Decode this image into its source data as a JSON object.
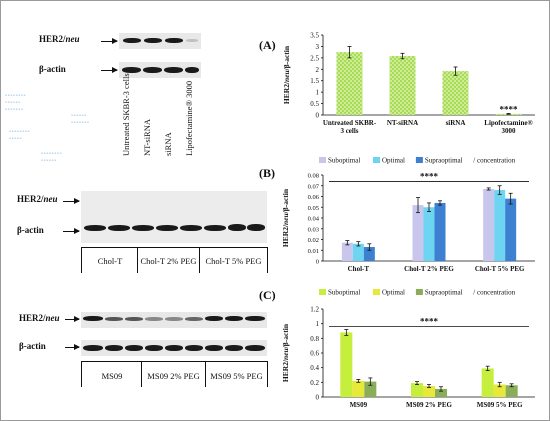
{
  "panel_labels": {
    "a": "(A)",
    "b": "(B)",
    "c": "(C)"
  },
  "blot_labels": {
    "her2": "HER2/neu",
    "actin": "β-actin"
  },
  "panel_a": {
    "lanes": [
      "Untreated SKBR-3 cells",
      "NT-siRNA",
      "siRNA",
      "Lipofectamine® 3000"
    ]
  },
  "panel_b": {
    "groups": [
      "Chol-T",
      "Chol-T 2% PEG",
      "Chol-T 5% PEG"
    ],
    "legend": [
      "Suboptimal",
      "Optimal",
      "Supraoptimal",
      "/ concentration"
    ]
  },
  "panel_c": {
    "groups": [
      "MS09",
      "MS09 2% PEG",
      "MS09 5% PEG"
    ],
    "legend": [
      "Suboptimal",
      "Optimal",
      "Supraoptimal",
      "/ concentration"
    ]
  },
  "colors": {
    "a_fill": "#9bd84a",
    "a_hatch": "#d9f0a0",
    "b_sub": "#c9c6ee",
    "b_opt": "#6dd4f2",
    "b_sup": "#3d7fd0",
    "c_sub": "#c6ee3c",
    "c_opt": "#e6e83a",
    "c_sup": "#8aae58"
  },
  "chart_data": [
    {
      "type": "bar",
      "panel": "A",
      "ylabel": "HER2/neu/β-actin",
      "ylim": [
        0,
        3.5
      ],
      "yticks": [
        0,
        0.5,
        1,
        1.5,
        2,
        2.5,
        3,
        3.5
      ],
      "ytick_labels": [
        "0",
        "0.5",
        "1",
        "1.5",
        "2",
        "2.5",
        "3",
        "3.5"
      ],
      "categories": [
        "Untreated SKBR-3 cells",
        "NT-siRNA",
        "siRNA",
        "Lipofectamine® 3000"
      ],
      "values": [
        2.75,
        2.58,
        1.92,
        0.05
      ],
      "errors": [
        0.25,
        0.12,
        0.18,
        0.02
      ],
      "annotations": [
        {
          "category_index": 3,
          "text": "****"
        }
      ]
    },
    {
      "type": "bar",
      "panel": "B",
      "ylabel": "HER2/neu/β-actin",
      "ylim": [
        0,
        0.08
      ],
      "yticks": [
        0,
        0.01,
        0.02,
        0.03,
        0.04,
        0.05,
        0.06,
        0.07,
        0.08
      ],
      "ytick_labels": [
        "0",
        "0.01",
        "0.02",
        "0.03",
        "0.04",
        "0.05",
        "0.06",
        "0.07",
        "0.08"
      ],
      "categories": [
        "Chol-T",
        "Chol-T 2% PEG",
        "Chol-T 5% PEG"
      ],
      "series": [
        {
          "name": "Suboptimal",
          "values": [
            0.017,
            0.052,
            0.067
          ],
          "errors": [
            0.002,
            0.007,
            0.001
          ]
        },
        {
          "name": "Optimal",
          "values": [
            0.016,
            0.05,
            0.066
          ],
          "errors": [
            0.002,
            0.004,
            0.004
          ]
        },
        {
          "name": "Supraoptimal",
          "values": [
            0.013,
            0.054,
            0.058
          ],
          "errors": [
            0.003,
            0.002,
            0.005
          ]
        }
      ],
      "legend_suffix": "/ concentration",
      "bracket_text": "****"
    },
    {
      "type": "bar",
      "panel": "C",
      "ylabel": "HER2/neu/β-actin",
      "ylim": [
        0,
        1.2
      ],
      "yticks": [
        0,
        0.2,
        0.4,
        0.6,
        0.8,
        1,
        1.2
      ],
      "ytick_labels": [
        "0",
        "0.2",
        "0.4",
        "0.6",
        "0.8",
        "1",
        "1.2"
      ],
      "categories": [
        "MS09",
        "MS09 2% PEG",
        "MS09 5% PEG"
      ],
      "series": [
        {
          "name": "Suboptimal",
          "values": [
            0.88,
            0.19,
            0.39
          ],
          "errors": [
            0.04,
            0.02,
            0.03
          ]
        },
        {
          "name": "Optimal",
          "values": [
            0.22,
            0.15,
            0.17
          ],
          "errors": [
            0.02,
            0.02,
            0.03
          ]
        },
        {
          "name": "Supraoptimal",
          "values": [
            0.21,
            0.11,
            0.16
          ],
          "errors": [
            0.05,
            0.03,
            0.02
          ]
        }
      ],
      "legend_suffix": "/ concentration",
      "bracket_text": "****"
    }
  ]
}
